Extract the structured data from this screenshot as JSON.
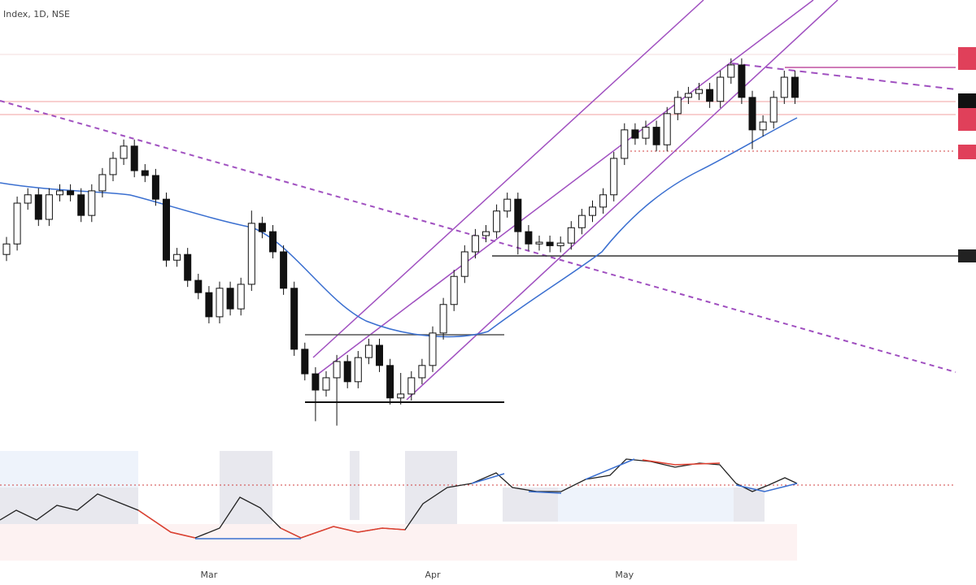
{
  "chart_data": {
    "type": "candlestick",
    "title": "Index, 1D, NSE",
    "ylim": [
      0,
      100
    ],
    "up_color": "#ffffff",
    "down_color": "#111111",
    "edge_color": "#111111",
    "categories": [
      null,
      null,
      null,
      null,
      null,
      null,
      null,
      null,
      null,
      null,
      null,
      null,
      null,
      null,
      null,
      null,
      null,
      null,
      null,
      "Mar",
      null,
      null,
      null,
      null,
      null,
      null,
      null,
      null,
      null,
      null,
      null,
      null,
      null,
      null,
      null,
      null,
      null,
      null,
      null,
      null,
      "Apr",
      null,
      null,
      null,
      null,
      null,
      null,
      null,
      null,
      null,
      null,
      null,
      null,
      null,
      null,
      null,
      null,
      null,
      "May",
      null,
      null,
      null,
      null,
      null,
      null,
      null,
      null,
      null,
      null,
      null,
      null,
      null,
      null,
      null,
      null
    ],
    "open": [
      42.0,
      44.4,
      53.7,
      55.6,
      50.0,
      55.6,
      56.5,
      55.6,
      50.9,
      56.5,
      60.2,
      63.9,
      66.7,
      61.1,
      60.0,
      54.6,
      40.7,
      42.0,
      36.1,
      33.3,
      27.8,
      34.3,
      29.6,
      35.2,
      49.1,
      47.2,
      42.6,
      34.3,
      20.4,
      14.8,
      11.1,
      13.9,
      17.6,
      13.0,
      18.5,
      21.3,
      16.7,
      9.3,
      10.2,
      13.9,
      16.7,
      24.1,
      30.6,
      37.0,
      42.6,
      46.3,
      47.2,
      51.9,
      54.6,
      47.2,
      44.4,
      44.8,
      44.0,
      44.6,
      48.1,
      50.9,
      52.8,
      55.6,
      63.9,
      70.4,
      68.5,
      71.0,
      67.0,
      74.1,
      77.8,
      78.7,
      79.6,
      76.9,
      82.4,
      85.2,
      77.8,
      70.4,
      72.2,
      77.8,
      82.4
    ],
    "high": [
      46.0,
      55.2,
      57.1,
      57.1,
      57.1,
      58.0,
      58.0,
      57.1,
      58.0,
      61.7,
      65.4,
      68.2,
      68.2,
      62.6,
      61.5,
      56.1,
      43.5,
      43.5,
      37.6,
      34.8,
      35.8,
      35.8,
      36.7,
      52.0,
      50.6,
      48.7,
      44.1,
      35.8,
      21.9,
      16.3,
      15.4,
      19.1,
      19.1,
      20.0,
      22.8,
      22.8,
      18.2,
      15.0,
      15.4,
      18.2,
      25.6,
      32.1,
      38.5,
      44.1,
      47.8,
      48.7,
      53.4,
      56.1,
      56.1,
      48.7,
      46.3,
      46.3,
      46.1,
      49.6,
      52.4,
      54.3,
      57.1,
      65.4,
      71.9,
      71.9,
      72.5,
      72.5,
      75.6,
      79.3,
      80.2,
      81.1,
      81.1,
      83.9,
      86.7,
      86.7,
      79.3,
      73.7,
      79.3,
      83.9,
      83.9
    ],
    "low": [
      40.5,
      42.9,
      52.2,
      48.5,
      48.5,
      54.1,
      54.1,
      49.4,
      49.4,
      55.0,
      58.7,
      62.4,
      59.6,
      58.5,
      53.1,
      39.2,
      39.2,
      34.6,
      31.8,
      26.3,
      26.3,
      28.1,
      28.1,
      33.7,
      45.7,
      41.1,
      32.8,
      18.9,
      13.3,
      4.0,
      9.6,
      3.0,
      11.5,
      11.5,
      17.0,
      15.2,
      7.8,
      7.8,
      8.7,
      12.4,
      15.2,
      22.6,
      29.1,
      35.5,
      41.1,
      44.8,
      45.7,
      50.4,
      42.0,
      42.9,
      42.9,
      42.5,
      42.5,
      43.1,
      46.6,
      49.4,
      51.3,
      54.1,
      62.4,
      67.0,
      67.0,
      65.5,
      65.5,
      72.6,
      76.3,
      77.2,
      75.4,
      75.4,
      80.9,
      76.3,
      66.0,
      68.9,
      70.7,
      76.3,
      76.3
    ],
    "close": [
      44.4,
      53.7,
      55.6,
      50.0,
      55.6,
      56.5,
      55.6,
      50.9,
      56.5,
      60.2,
      63.9,
      66.7,
      61.1,
      60.0,
      54.6,
      40.7,
      42.0,
      36.1,
      33.3,
      27.8,
      34.3,
      29.6,
      35.2,
      49.1,
      47.2,
      42.6,
      34.3,
      20.4,
      14.8,
      11.1,
      13.9,
      17.6,
      13.0,
      18.5,
      21.3,
      16.7,
      9.3,
      10.2,
      13.9,
      16.7,
      24.1,
      30.6,
      37.0,
      42.6,
      46.3,
      47.2,
      51.9,
      54.6,
      47.2,
      44.4,
      44.8,
      44.0,
      44.6,
      48.1,
      50.9,
      52.8,
      55.6,
      63.9,
      70.4,
      68.5,
      71.0,
      67.0,
      74.1,
      77.8,
      78.7,
      79.6,
      76.9,
      82.4,
      85.2,
      77.8,
      70.4,
      72.2,
      77.8,
      82.4,
      77.8
    ]
  }
}
